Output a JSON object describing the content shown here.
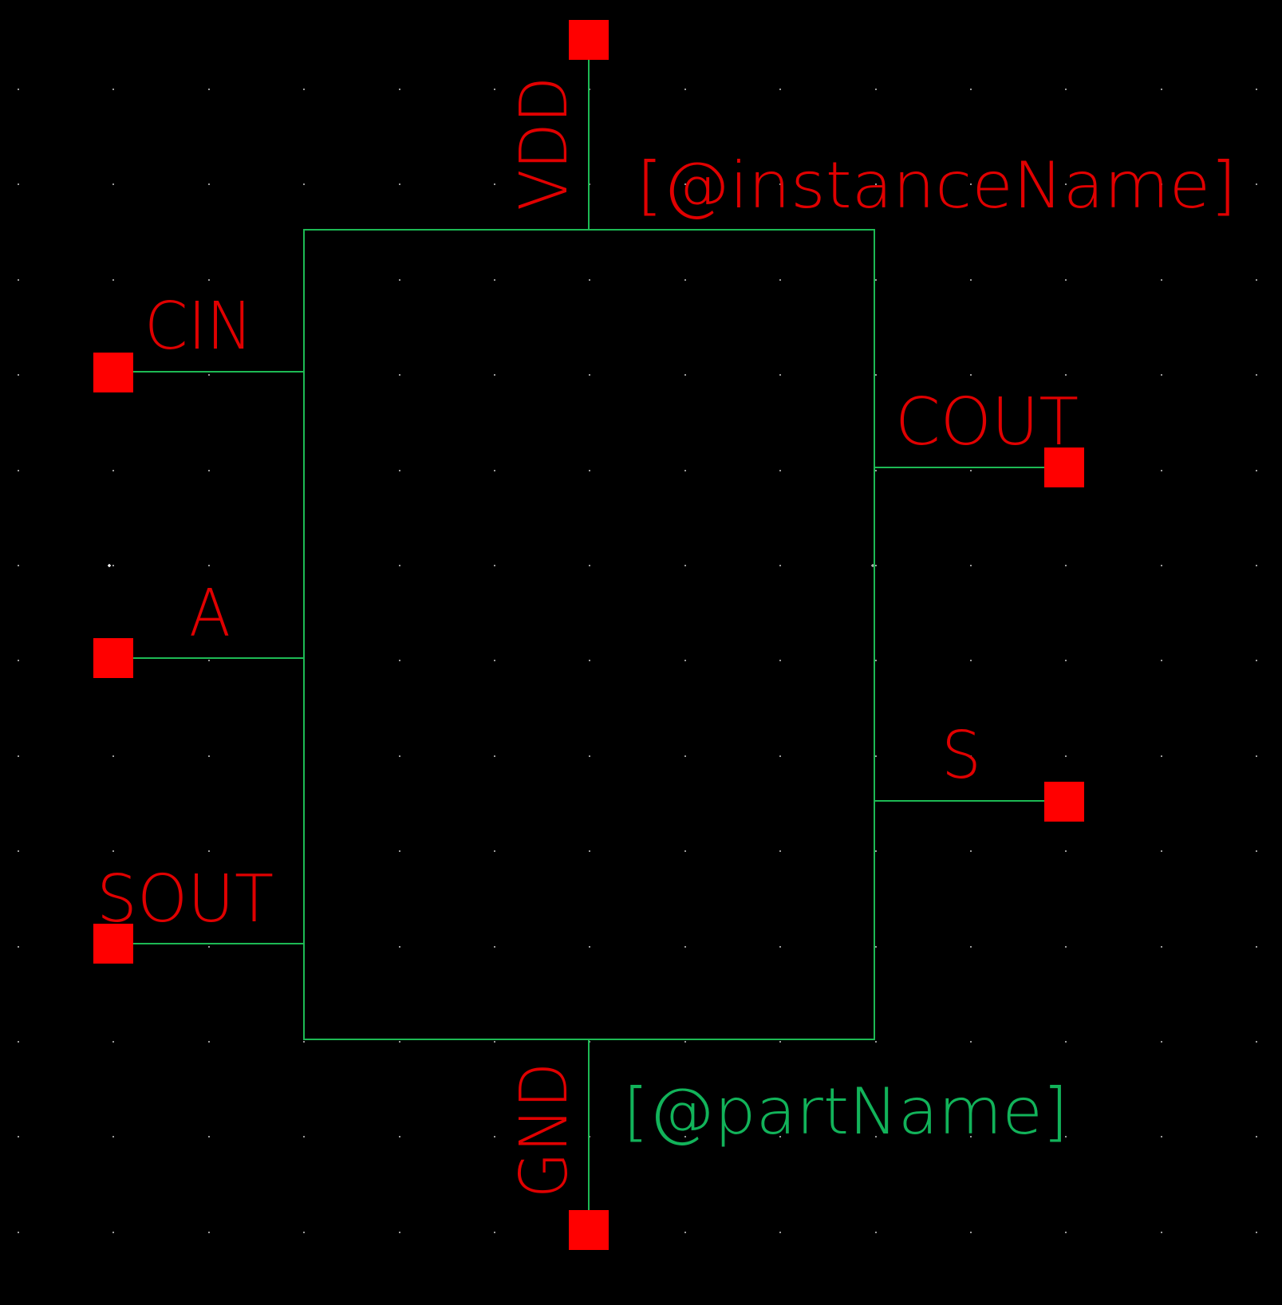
{
  "colors": {
    "background": "#000000",
    "wire": "#1db954",
    "pin": "#ff0000",
    "pin_label": "#e00000",
    "instance_label": "#e00000",
    "part_label": "#12b35a",
    "grid_dot": "#9a9a9a",
    "origin_marker": "#ffffff"
  },
  "symbol": {
    "instance_label": "[@instanceName]",
    "part_label": "[@partName]"
  },
  "pins": {
    "vdd": "VDD",
    "gnd": "GND",
    "cin": "CIN",
    "a": "A",
    "sout": "SOUT",
    "cout": "COUT",
    "s": "S"
  }
}
